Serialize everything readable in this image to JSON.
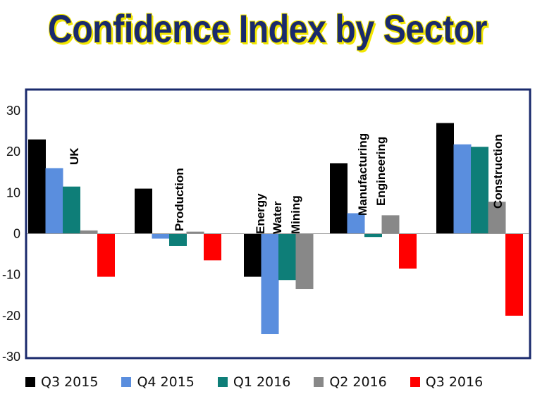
{
  "chart_data": {
    "type": "bar",
    "title": "Confidence Index by Sector",
    "categories": [
      "UK",
      "Production",
      "Energy Water Mining",
      "Manufacturing Engineering",
      "Construction"
    ],
    "category_label_lines": [
      [
        "UK"
      ],
      [
        "Production"
      ],
      [
        "Energy",
        "Water",
        "Mining"
      ],
      [
        "Manufacturing",
        "Engineering"
      ],
      [
        "Construction"
      ]
    ],
    "series": [
      {
        "name": "Q3 2015",
        "color": "#000000",
        "values": [
          23,
          11,
          -10.5,
          17.2,
          27
        ]
      },
      {
        "name": "Q4 2015",
        "color": "#5a8ede",
        "values": [
          16,
          -1.2,
          -24.5,
          5,
          21.8
        ]
      },
      {
        "name": "Q1 2016",
        "color": "#0e7e78",
        "values": [
          11.5,
          -3,
          -11.3,
          -0.8,
          21.2
        ]
      },
      {
        "name": "Q2 2016",
        "color": "#888888",
        "values": [
          0.8,
          0.5,
          -13.5,
          4.5,
          7.8
        ]
      },
      {
        "name": "Q3 2016",
        "color": "#ff0000",
        "values": [
          -10.5,
          -6.5,
          null,
          -8.5,
          -20
        ]
      }
    ],
    "ylim": [
      -30,
      35
    ],
    "yticks": [
      -30,
      -20,
      -10,
      0,
      10,
      20,
      30
    ],
    "ytick_labels": [
      "-30",
      "-20",
      "-10",
      "0",
      "10",
      "20",
      "30"
    ],
    "xlabel": "",
    "ylabel": "",
    "grid": false,
    "legend_position": "bottom",
    "frame_color": "#1a2a6c"
  }
}
